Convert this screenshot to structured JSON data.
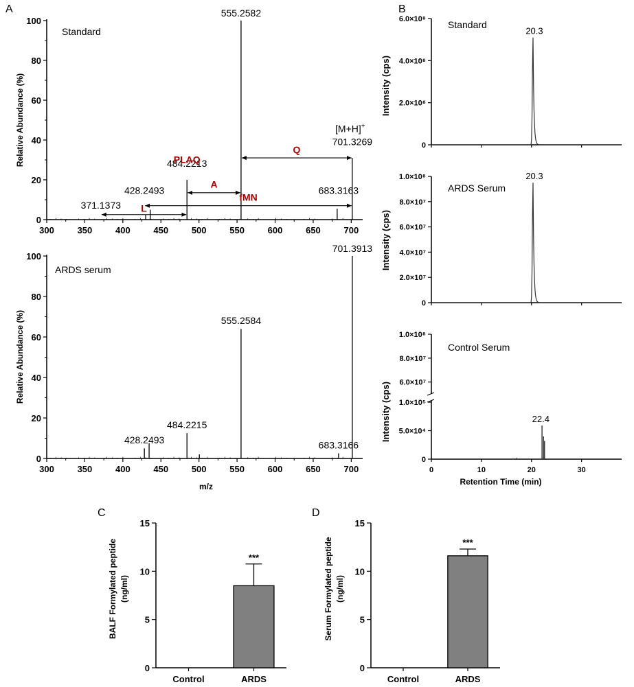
{
  "chart_data": [
    {
      "panel": "A",
      "type": "bar",
      "title": "Standard",
      "ylabel": "Relative Abundance (%)",
      "xlabel": "",
      "xlim": [
        300,
        715
      ],
      "ylim": [
        0,
        100
      ],
      "xticks": [
        300,
        350,
        400,
        450,
        500,
        550,
        600,
        650,
        700
      ],
      "yticks": [
        0,
        20,
        40,
        60,
        80,
        100
      ],
      "peaks": [
        {
          "mz": 430.0,
          "abundance": 2.5
        },
        {
          "mz": 436.0,
          "abundance": 5.0
        },
        {
          "mz": 484.2213,
          "abundance": 20
        },
        {
          "mz": 555.2582,
          "abundance": 100
        },
        {
          "mz": 681.5,
          "abundance": 5.5
        },
        {
          "mz": 701.3269,
          "abundance": 31
        }
      ],
      "peak_labels": [
        {
          "text": "555.2582",
          "mz": 555.2582,
          "y": 102
        },
        {
          "text": "701.3269",
          "mz": 701.3269,
          "y": 37.5
        },
        {
          "text": "484.2213",
          "mz": 484.2213,
          "y": 26.5
        },
        {
          "text": "428.2493",
          "mz": 428.2493,
          "y": 13
        },
        {
          "text": "683.3163",
          "mz": 683.3163,
          "y": 13
        },
        {
          "text": "371.1373",
          "mz": 371.1373,
          "y": 5.5
        }
      ],
      "precursor_label": "[M+H]",
      "precursor_superscript": "+",
      "fragments": [
        {
          "label": "Q",
          "from": 555.2582,
          "to": 701.3269,
          "y": 31,
          "label_y": 33.5
        },
        {
          "label": "A",
          "from": 484.2213,
          "to": 555.2582,
          "y": 13.5,
          "label_y": 16
        },
        {
          "label": "PLAQ",
          "from": 484.2213,
          "to": 484.2213,
          "y": 28.5,
          "label_y": 28.5
        },
        {
          "label": "fMN",
          "from": 428.2493,
          "to": 701.3269,
          "y": 7,
          "label_y": 9.5
        },
        {
          "label": "L",
          "from": 371.1373,
          "to": 484.2213,
          "y": 2.5,
          "label_y": 4
        }
      ]
    },
    {
      "panel": "A",
      "type": "bar",
      "title": "ARDS serum",
      "ylabel": "Relative Abundance (%)",
      "xlabel": "m/z",
      "xlim": [
        300,
        715
      ],
      "ylim": [
        0,
        100
      ],
      "xticks": [
        300,
        350,
        400,
        450,
        500,
        550,
        600,
        650,
        700
      ],
      "yticks": [
        0,
        20,
        40,
        60,
        80,
        100
      ],
      "peaks": [
        {
          "mz": 428.2493,
          "abundance": 5
        },
        {
          "mz": 434.5,
          "abundance": 7.5
        },
        {
          "mz": 484.2215,
          "abundance": 12.5
        },
        {
          "mz": 500.5,
          "abundance": 2
        },
        {
          "mz": 555.2584,
          "abundance": 64
        },
        {
          "mz": 683.3166,
          "abundance": 2.5
        },
        {
          "mz": 701.3913,
          "abundance": 100
        }
      ],
      "peak_labels": [
        {
          "text": "701.3913",
          "mz": 701.3913,
          "y": 102
        },
        {
          "text": "555.2584",
          "mz": 555.2584,
          "y": 66.5
        },
        {
          "text": "484.2215",
          "mz": 484.2215,
          "y": 15
        },
        {
          "text": "428.2493",
          "mz": 428.2493,
          "y": 7.5
        },
        {
          "text": "683.3166",
          "mz": 683.3166,
          "y": 5
        }
      ]
    },
    {
      "panel": "B",
      "type": "line",
      "title": "Standard",
      "ylabel": "Intensity (cps)",
      "xlim": [
        0,
        38
      ],
      "ylim": [
        0,
        600000000.0
      ],
      "yticks": [
        {
          "value": 0,
          "text": "0"
        },
        {
          "value": 200000000.0,
          "text": "2.0×10⁸"
        },
        {
          "value": 400000000.0,
          "text": "4.0×10⁸"
        },
        {
          "value": 600000000.0,
          "text": "6.0×10⁸"
        }
      ],
      "peak_rt": 20.3,
      "peak_height": 510000000.0,
      "peak_label": "20.3"
    },
    {
      "panel": "B",
      "type": "line",
      "title": "ARDS Serum",
      "ylabel": "Intensity (cps)",
      "xlim": [
        0,
        38
      ],
      "ylim": [
        0,
        100000000.0
      ],
      "yticks": [
        {
          "value": 0,
          "text": "0"
        },
        {
          "value": 20000000.0,
          "text": "2.0×10⁷"
        },
        {
          "value": 40000000.0,
          "text": "4.0×10⁷"
        },
        {
          "value": 60000000.0,
          "text": "6.0×10⁷"
        },
        {
          "value": 80000000.0,
          "text": "8.0×10⁷"
        },
        {
          "value": 100000000.0,
          "text": "1.0×10⁸"
        }
      ],
      "peak_rt": 20.3,
      "peak_height": 95000000.0,
      "peak_label": "20.3"
    },
    {
      "panel": "B",
      "type": "line",
      "title": "Control Serum",
      "ylabel": "Intensity (cps)",
      "xlabel": "Retention Time (min)",
      "xlim": [
        0,
        38
      ],
      "xticks": [
        0,
        10,
        20,
        30
      ],
      "broken_axis": true,
      "upper_range": [
        50000000.0,
        100000000.0
      ],
      "lower_range": [
        0,
        100000.0
      ],
      "yticks_upper": [
        {
          "value": 60000000.0,
          "text": "6.0×10⁷"
        },
        {
          "value": 80000000.0,
          "text": "8.0×10⁷"
        },
        {
          "value": 100000000.0,
          "text": "1.0×10⁸"
        }
      ],
      "yticks_lower": [
        {
          "value": 0,
          "text": "0"
        },
        {
          "value": 50000.0,
          "text": "5.0×10⁴"
        },
        {
          "value": 100000.0,
          "text": "1.0×10⁵"
        }
      ],
      "peaks": [
        {
          "rt": 22.1,
          "height": 59000.0
        },
        {
          "rt": 22.4,
          "height": 40000.0
        },
        {
          "rt": 22.6,
          "height": 32000.0
        }
      ],
      "peak_label": "22.4"
    },
    {
      "panel": "C",
      "type": "bar",
      "ylabel_line1": "BALF Formylated peptide",
      "ylabel_line2": "(ng/ml)",
      "categories": [
        "Control",
        "ARDS"
      ],
      "values": [
        0,
        8.5
      ],
      "errors": [
        0,
        2.25
      ],
      "ylim": [
        0,
        15
      ],
      "yticks": [
        0,
        5,
        10,
        15
      ],
      "significance": "***"
    },
    {
      "panel": "D",
      "type": "bar",
      "ylabel_line1": "Serum Formylated peptide",
      "ylabel_line2": "(ng/ml)",
      "categories": [
        "Control",
        "ARDS"
      ],
      "values": [
        0,
        11.6
      ],
      "errors": [
        0,
        0.7
      ],
      "ylim": [
        0,
        15
      ],
      "yticks": [
        0,
        5,
        10,
        15
      ],
      "significance": "***"
    }
  ],
  "panel_letters": [
    "A",
    "B",
    "C",
    "D"
  ],
  "colors": {
    "axis": "#000000",
    "peak": "#000000",
    "fragment_label": "#b30000",
    "bar_fill": "#808080",
    "chrom_line": "#333333"
  }
}
